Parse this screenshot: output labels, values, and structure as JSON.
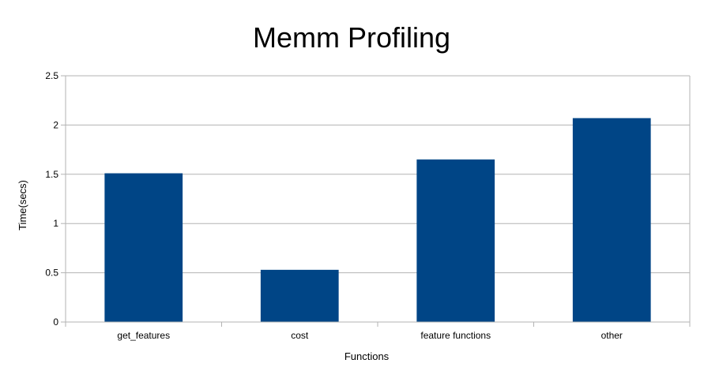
{
  "chart_data": {
    "type": "bar",
    "title": "Memm Profiling",
    "xlabel": "Functions",
    "ylabel": "Time(secs)",
    "categories": [
      "get_features",
      "cost",
      "feature functions",
      "other"
    ],
    "series": [
      {
        "values": [
          1.51,
          0.53,
          1.65,
          2.07
        ]
      }
    ],
    "ylim": [
      0,
      2.5
    ],
    "yticks": [
      "0",
      "0.5",
      "1",
      "1.5",
      "2",
      "2.5"
    ],
    "grid": "horizontal",
    "legend": "none",
    "colors": {
      "bar": "#004586",
      "grid": "#b3b3b3",
      "axis": "#b3b3b3",
      "text": "#000000"
    }
  }
}
